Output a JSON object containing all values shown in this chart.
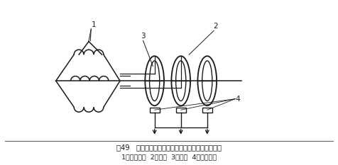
{
  "title_line1": "图49   绕线式电机转子线组与附加电阻的连接示意图",
  "title_line2": "1．转子绕组  2．滑环  3．电刷  4．附加电阻",
  "bg_color": "#ffffff",
  "line_color": "#1a1a1a",
  "label1": "1",
  "label2": "2",
  "label3": "3",
  "label4": "4",
  "figsize": [
    4.77,
    2.33
  ],
  "dpi": 100
}
